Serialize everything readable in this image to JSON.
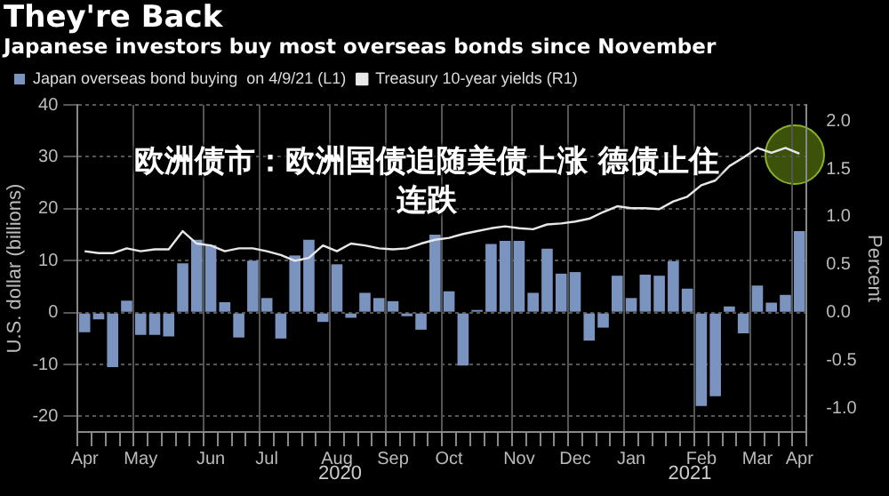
{
  "chart_data": {
    "type": "bar",
    "title": "They're Back",
    "subtitle": "Japanese investors buy most overseas bonds since November",
    "ylabel": "U.S. dollar (billions)",
    "y2label": "Percent",
    "categories": [
      "Apr",
      null,
      null,
      null,
      "May",
      null,
      null,
      null,
      null,
      "Jun",
      null,
      null,
      null,
      "Jul",
      null,
      null,
      null,
      null,
      "Aug",
      null,
      null,
      null,
      "Sep",
      null,
      null,
      null,
      "Oct",
      null,
      null,
      null,
      null,
      "Nov",
      null,
      null,
      null,
      "Dec",
      null,
      null,
      null,
      "Jan",
      null,
      null,
      null,
      null,
      "Feb",
      null,
      null,
      null,
      "Mar",
      null,
      null,
      "Apr"
    ],
    "series": [
      {
        "name": "Japan overseas bond buying  on 4/9/21 (L1)",
        "color": "#7b93bf",
        "values": [
          -3.8,
          -1.3,
          -10.5,
          2.3,
          -4.3,
          -4.3,
          -4.6,
          9.5,
          14,
          13,
          2,
          -4.8,
          10,
          2.8,
          -5,
          11,
          14,
          -1.8,
          9.3,
          -1,
          3.8,
          2.8,
          2.2,
          -0.7,
          -3.3,
          15,
          4.1,
          -10.2,
          0.5,
          13.2,
          13.8,
          13.8,
          3.8,
          12.3,
          7.5,
          7.8,
          -5.4,
          -2.9,
          7.1,
          2.8,
          7.3,
          7.1,
          9.9,
          4.6,
          -18,
          -16.1,
          1.2,
          -4,
          5.2,
          1.9,
          3.4,
          15.7
        ]
      },
      {
        "name": "Treasury 10-year yields (R1)",
        "type": "line",
        "axis": "y2",
        "color": "#e8e8e8",
        "values": [
          0.64,
          0.62,
          0.62,
          0.67,
          0.64,
          0.66,
          0.66,
          0.85,
          0.72,
          0.7,
          0.64,
          0.67,
          0.67,
          0.64,
          0.6,
          0.54,
          0.57,
          0.7,
          0.64,
          0.72,
          0.7,
          0.67,
          0.66,
          0.67,
          0.72,
          0.76,
          0.78,
          0.82,
          0.85,
          0.88,
          0.9,
          0.88,
          0.87,
          0.92,
          0.93,
          0.95,
          0.98,
          1.05,
          1.11,
          1.09,
          1.09,
          1.08,
          1.16,
          1.21,
          1.33,
          1.38,
          1.53,
          1.62,
          1.72,
          1.67,
          1.72,
          1.66
        ]
      }
    ],
    "ylim": [
      -23,
      40
    ],
    "yticks": [
      -20,
      -10,
      0,
      10,
      20,
      30,
      40
    ],
    "y2lim": [
      -1.25,
      2.17
    ],
    "y2ticks": [
      {
        "value": -1,
        "label": "-1.0"
      },
      -0.5,
      {
        "value": 0,
        "label": "0.0"
      },
      0.5,
      {
        "value": 1,
        "label": "1.0"
      },
      1.5,
      {
        "value": 2,
        "label": "2.0"
      }
    ],
    "grid": true,
    "legend": "top left",
    "marker": "none",
    "line_style": "solid",
    "annotations": [
      "欧洲债市：欧洲国债追随美债上涨 德债止住连跌",
      "2020",
      "2021"
    ]
  }
}
